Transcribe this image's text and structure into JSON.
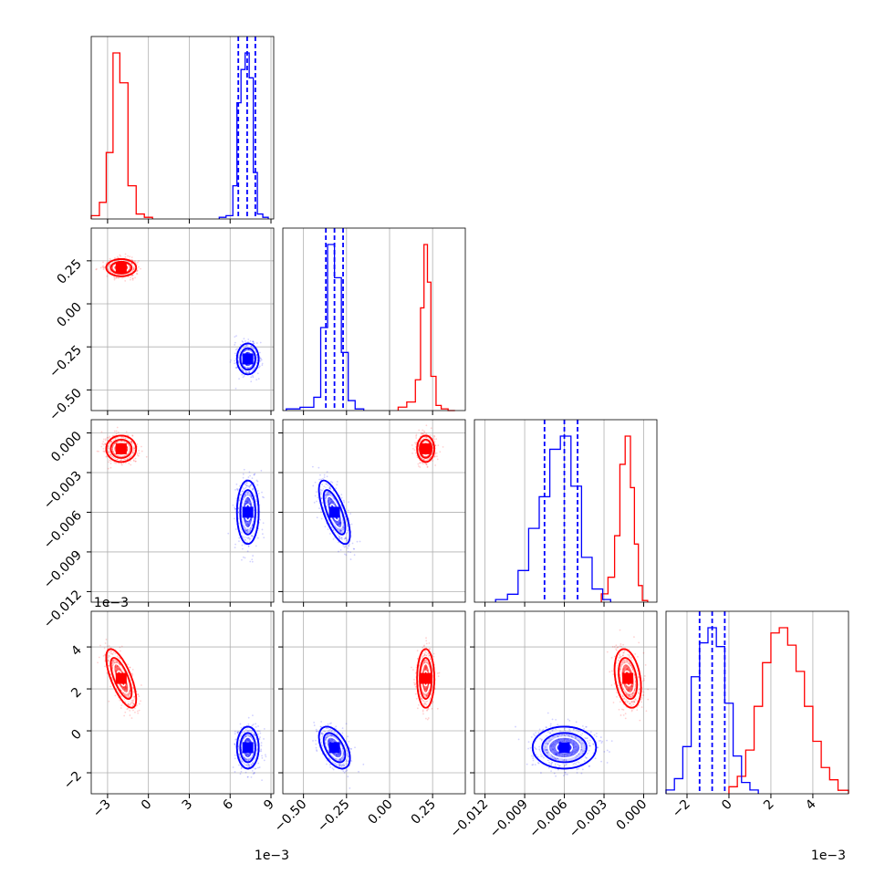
{
  "chart_data": {
    "type": "corner",
    "title": "",
    "params": [
      {
        "range": [
          -4.2,
          9.2
        ],
        "ticks": [
          -3,
          0,
          3,
          6,
          9
        ],
        "tick_labels": [
          "−3",
          "0",
          "3",
          "6",
          "9"
        ],
        "offset_label": "1e−3"
      },
      {
        "range": [
          -0.62,
          0.44
        ],
        "ticks": [
          -0.5,
          -0.25,
          0.0,
          0.25
        ],
        "tick_labels": [
          "−0.50",
          "−0.25",
          "0.00",
          "0.25"
        ],
        "offset_label": ""
      },
      {
        "range": [
          -0.0128,
          0.001
        ],
        "ticks": [
          -0.012,
          -0.009,
          -0.006,
          -0.003,
          0.0
        ],
        "tick_labels": [
          "−0.012",
          "−0.009",
          "−0.006",
          "−0.003",
          "0.000"
        ],
        "offset_label": ""
      },
      {
        "range": [
          -3.0,
          5.7
        ],
        "ticks": [
          -2,
          0,
          2,
          4
        ],
        "tick_labels": [
          "−2",
          "0",
          "2",
          "4"
        ],
        "offset_label": "1e−3"
      }
    ],
    "series": [
      {
        "color": "#ff0000",
        "mean": [
          -2.0,
          0.21,
          -0.0012,
          2.5
        ],
        "std": [
          0.55,
          0.025,
          0.0005,
          0.7
        ],
        "corr": [
          [
            1,
            0,
            0,
            -0.7
          ],
          [
            0,
            1,
            0,
            0
          ],
          [
            0,
            0,
            1,
            -0.3
          ],
          [
            -0.7,
            0,
            -0.3,
            1
          ]
        ],
        "histograms": [
          {
            "edges": [
              -4.2,
              -3.6,
              -3.1,
              -2.6,
              -2.1,
              -1.5,
              -0.9,
              -0.3,
              0.3
            ],
            "counts": [
              2,
              10,
              40,
              100,
              82,
              20,
              3,
              1
            ]
          },
          {
            "edges": [
              0.05,
              0.1,
              0.15,
              0.18,
              0.2,
              0.22,
              0.24,
              0.27,
              0.3,
              0.34,
              0.38
            ],
            "counts": [
              2,
              5,
              18,
              60,
              97,
              75,
              20,
              3,
              1,
              0
            ]
          },
          {
            "edges": [
              -0.0032,
              -0.0027,
              -0.0022,
              -0.0018,
              -0.0014,
              -0.001,
              -0.0007,
              -0.0004,
              -0.0001,
              0.0003
            ],
            "counts": [
              5,
              15,
              40,
              83,
              100,
              69,
              35,
              10,
              1
            ]
          },
          {
            "edges": [
              0.0,
              0.4,
              0.8,
              1.2,
              1.6,
              2.0,
              2.4,
              2.8,
              3.2,
              3.6,
              4.0,
              4.4,
              4.8,
              5.2,
              5.7
            ],
            "counts": [
              4,
              10,
              25,
              50,
              75,
              92,
              95,
              85,
              70,
              50,
              30,
              15,
              8,
              2
            ]
          }
        ]
      },
      {
        "color": "#0000ff",
        "mean": [
          7.3,
          -0.32,
          -0.006,
          -0.8
        ],
        "std": [
          0.4,
          0.045,
          0.0012,
          0.5
        ],
        "corr": [
          [
            1,
            0,
            0,
            0
          ],
          [
            0,
            1,
            -0.7,
            -0.5
          ],
          [
            0,
            -0.7,
            1,
            0
          ],
          [
            0,
            -0.5,
            0,
            1
          ]
        ],
        "quantiles": [
          [
            6.6,
            7.25,
            7.85
          ],
          [
            -0.37,
            -0.32,
            -0.27
          ],
          [
            -0.0075,
            -0.006,
            -0.005
          ],
          [
            -1.4,
            -0.8,
            -0.2
          ]
        ],
        "histograms": [
          {
            "edges": [
              5.2,
              5.7,
              6.2,
              6.5,
              6.8,
              7.1,
              7.4,
              7.7,
              8.0,
              8.4,
              8.8
            ],
            "counts": [
              1,
              2,
              20,
              70,
              90,
              100,
              85,
              28,
              3,
              1
            ]
          },
          {
            "edges": [
              -0.6,
              -0.52,
              -0.44,
              -0.4,
              -0.36,
              -0.32,
              -0.28,
              -0.24,
              -0.2,
              -0.15
            ],
            "counts": [
              1,
              2,
              8,
              50,
              100,
              80,
              35,
              6,
              1
            ]
          },
          {
            "edges": [
              -0.0112,
              -0.0103,
              -0.0095,
              -0.0087,
              -0.0079,
              -0.0071,
              -0.0063,
              -0.0055,
              -0.0047,
              -0.0039,
              -0.0031,
              -0.0025
            ],
            "counts": [
              1,
              3,
              12,
              28,
              40,
              58,
              63,
              44,
              17,
              5,
              1
            ]
          },
          {
            "edges": [
              -3.0,
              -2.6,
              -2.2,
              -1.8,
              -1.4,
              -1.0,
              -0.6,
              -0.2,
              0.2,
              0.6,
              1.0,
              1.4
            ],
            "counts": [
              2,
              8,
              25,
              62,
              80,
              88,
              78,
              48,
              20,
              6,
              2
            ]
          }
        ]
      }
    ]
  }
}
